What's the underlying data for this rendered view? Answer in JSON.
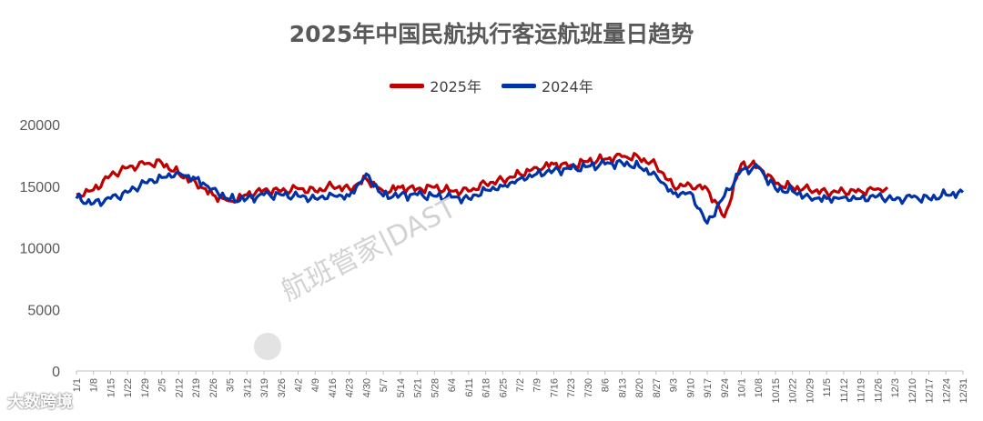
{
  "watermark": "航班管家|DAST",
  "footer_mark": "大数跨境",
  "colors": {
    "series_2025": "#C00000",
    "series_2024": "#0033A6",
    "axis": "#BFBFBF"
  },
  "chart_data": {
    "type": "line",
    "title": "2025年中国民航执行客运航班量日趋势",
    "xlabel": "",
    "ylabel": "",
    "ylim": [
      0,
      20000
    ],
    "yticks": [
      0,
      5000,
      10000,
      15000,
      20000
    ],
    "xticks": [
      "1/1",
      "1/8",
      "1/15",
      "1/22",
      "1/29",
      "2/5",
      "2/12",
      "2/19",
      "2/26",
      "3/5",
      "3/12",
      "3/19",
      "3/26",
      "4/2",
      "4/9",
      "4/16",
      "4/23",
      "4/30",
      "5/7",
      "5/14",
      "5/21",
      "5/28",
      "6/4",
      "6/11",
      "6/18",
      "6/25",
      "7/2",
      "7/9",
      "7/16",
      "7/23",
      "7/30",
      "8/6",
      "8/13",
      "8/20",
      "8/27",
      "9/3",
      "9/10",
      "9/17",
      "9/24",
      "10/1",
      "10/8",
      "10/15",
      "10/22",
      "10/29",
      "11/5",
      "11/12",
      "11/19",
      "11/26",
      "12/3",
      "12/10",
      "12/17",
      "12/24",
      "12/31"
    ],
    "grid": false,
    "legend_position": "top-center",
    "series": [
      {
        "name": "2025年",
        "color": "#C00000",
        "points": [
          [
            "1/1",
            14300
          ],
          [
            "1/8",
            14700
          ],
          [
            "1/15",
            15900
          ],
          [
            "1/22",
            16500
          ],
          [
            "1/29",
            16800
          ],
          [
            "2/5",
            16900
          ],
          [
            "2/12",
            16000
          ],
          [
            "2/19",
            15300
          ],
          [
            "2/26",
            14300
          ],
          [
            "3/5",
            13800
          ],
          [
            "3/12",
            14300
          ],
          [
            "3/19",
            14700
          ],
          [
            "3/26",
            14600
          ],
          [
            "4/2",
            14800
          ],
          [
            "4/9",
            14600
          ],
          [
            "4/16",
            15000
          ],
          [
            "4/23",
            14800
          ],
          [
            "4/30",
            15600
          ],
          [
            "5/7",
            14600
          ],
          [
            "5/14",
            14900
          ],
          [
            "5/21",
            14800
          ],
          [
            "5/28",
            14900
          ],
          [
            "6/4",
            14600
          ],
          [
            "6/11",
            14600
          ],
          [
            "6/18",
            15200
          ],
          [
            "6/25",
            15500
          ],
          [
            "7/2",
            16000
          ],
          [
            "7/9",
            16500
          ],
          [
            "7/16",
            16800
          ],
          [
            "7/23",
            16700
          ],
          [
            "7/30",
            17000
          ],
          [
            "8/6",
            17200
          ],
          [
            "8/13",
            17400
          ],
          [
            "8/20",
            17300
          ],
          [
            "8/27",
            16700
          ],
          [
            "9/3",
            15000
          ],
          [
            "9/10",
            15100
          ],
          [
            "9/17",
            14800
          ],
          [
            "9/24",
            12500
          ],
          [
            "10/1",
            16800
          ],
          [
            "10/8",
            16600
          ],
          [
            "10/15",
            15200
          ],
          [
            "10/22",
            14900
          ],
          [
            "10/29",
            14700
          ],
          [
            "11/5",
            14500
          ],
          [
            "11/12",
            14600
          ],
          [
            "11/19",
            14600
          ],
          [
            "11/26",
            14800
          ],
          [
            "11/30",
            14900
          ]
        ]
      },
      {
        "name": "2024年",
        "color": "#0033A6",
        "points": [
          [
            "1/1",
            14000
          ],
          [
            "1/8",
            13600
          ],
          [
            "1/15",
            14000
          ],
          [
            "1/22",
            14500
          ],
          [
            "1/29",
            15300
          ],
          [
            "2/5",
            15700
          ],
          [
            "2/12",
            16100
          ],
          [
            "2/19",
            15600
          ],
          [
            "2/26",
            14800
          ],
          [
            "3/5",
            13900
          ],
          [
            "3/12",
            14000
          ],
          [
            "3/19",
            14300
          ],
          [
            "3/26",
            14300
          ],
          [
            "4/2",
            14200
          ],
          [
            "4/9",
            14000
          ],
          [
            "4/16",
            14300
          ],
          [
            "4/23",
            14200
          ],
          [
            "4/30",
            16000
          ],
          [
            "5/7",
            14200
          ],
          [
            "5/14",
            14300
          ],
          [
            "5/21",
            14300
          ],
          [
            "5/28",
            14200
          ],
          [
            "6/4",
            14100
          ],
          [
            "6/11",
            14000
          ],
          [
            "6/18",
            14700
          ],
          [
            "6/25",
            15000
          ],
          [
            "7/2",
            15600
          ],
          [
            "7/9",
            16000
          ],
          [
            "7/16",
            16300
          ],
          [
            "7/23",
            16400
          ],
          [
            "7/30",
            16600
          ],
          [
            "8/6",
            16800
          ],
          [
            "8/13",
            16900
          ],
          [
            "8/20",
            16600
          ],
          [
            "8/27",
            15900
          ],
          [
            "9/3",
            14400
          ],
          [
            "9/10",
            14500
          ],
          [
            "9/17",
            12000
          ],
          [
            "9/24",
            14200
          ],
          [
            "10/1",
            16300
          ],
          [
            "10/8",
            16500
          ],
          [
            "10/15",
            14800
          ],
          [
            "10/22",
            14600
          ],
          [
            "10/29",
            14100
          ],
          [
            "11/5",
            14000
          ],
          [
            "11/12",
            14100
          ],
          [
            "11/19",
            14000
          ],
          [
            "11/26",
            14200
          ],
          [
            "12/3",
            13900
          ],
          [
            "12/10",
            14100
          ],
          [
            "12/17",
            14000
          ],
          [
            "12/24",
            14300
          ],
          [
            "12/31",
            14500
          ]
        ]
      }
    ]
  }
}
